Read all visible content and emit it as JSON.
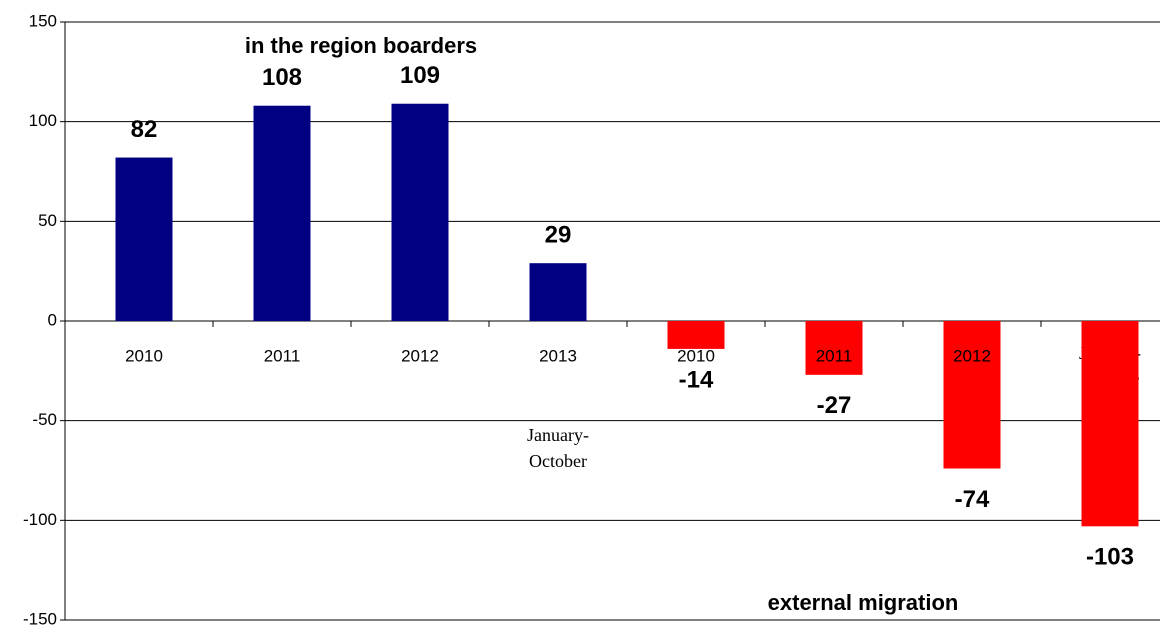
{
  "chart_data": {
    "type": "bar",
    "categories": [
      "2010",
      "2011",
      "2012",
      "2013",
      "2010",
      "2011",
      "2012",
      [
        "January-",
        "October",
        "2013"
      ]
    ],
    "values": [
      82,
      108,
      109,
      29,
      -14,
      -27,
      -74,
      -103
    ],
    "colors": [
      "#000080",
      "#000080",
      "#000080",
      "#000080",
      "#ff0000",
      "#ff0000",
      "#ff0000",
      "#ff0000"
    ],
    "annotations": [
      {
        "text": "in the region boarders",
        "color": "#800080"
      },
      {
        "text": "external migration",
        "color": "#008000"
      },
      {
        "text": [
          "January-",
          "October"
        ],
        "color": "#000000"
      }
    ],
    "ylim": [
      -150,
      150
    ],
    "yticks": [
      -150,
      -100,
      -50,
      0,
      50,
      100,
      150
    ],
    "grid": true
  }
}
